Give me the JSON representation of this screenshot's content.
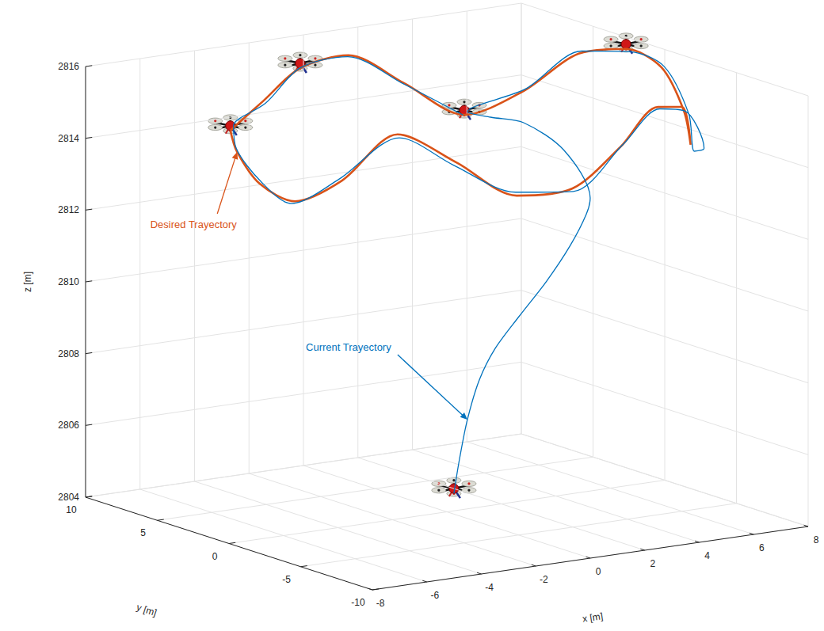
{
  "chart_data": {
    "type": "line3d",
    "xlabel": "x [m]",
    "ylabel": "y [m]",
    "zlabel": "z [m]",
    "xlim": [
      -8,
      8
    ],
    "ylim": [
      -10,
      10
    ],
    "zlim": [
      2804,
      2816
    ],
    "xticks": [
      -8,
      -6,
      -4,
      -2,
      0,
      2,
      4,
      6,
      8
    ],
    "yticks": [
      -10,
      -5,
      0,
      5,
      10
    ],
    "zticks": [
      2804,
      2806,
      2808,
      2810,
      2812,
      2814,
      2816
    ],
    "grid": true,
    "series": [
      {
        "name": "Desired Trayectory",
        "color": "#d95319",
        "values": [
          [
            -5.3,
            5.03,
            2814.56
          ],
          [
            -4.0,
            6.89,
            2814.4
          ],
          [
            -2.46,
            8.15,
            2814.66
          ],
          [
            -0.72,
            8.86,
            2815.3
          ],
          [
            1.11,
            8.97,
            2815.44
          ],
          [
            2.89,
            8.46,
            2814.53
          ],
          [
            4.52,
            7.37,
            2813.61
          ],
          [
            5.86,
            5.79,
            2814.33
          ],
          [
            6.84,
            3.8,
            2815.52
          ],
          [
            7.4,
            1.56,
            2815.88
          ],
          [
            7.47,
            -0.78,
            2815.66
          ],
          [
            7.08,
            -3.08,
            2814.79
          ],
          [
            6.3,
            -5.03,
            2814.18
          ],
          [
            5.0,
            -6.89,
            2815.62
          ],
          [
            3.46,
            -8.15,
            2815.95
          ],
          [
            1.72,
            -8.86,
            2815.13
          ],
          [
            -0.11,
            -8.97,
            2814.18
          ],
          [
            -1.89,
            -8.46,
            2814.11
          ],
          [
            -3.52,
            -7.37,
            2815.07
          ],
          [
            -4.86,
            -5.79,
            2815.8
          ],
          [
            -5.84,
            -3.8,
            2814.37
          ],
          [
            -6.4,
            -1.56,
            2813.56
          ],
          [
            -6.47,
            0.78,
            2813.76
          ],
          [
            -6.08,
            3.08,
            2814.3
          ],
          [
            -5.3,
            5.03,
            2814.56
          ]
        ]
      },
      {
        "name": "Current Trayectory",
        "color": "#0072bd",
        "values": [
          [
            -0.9,
            -2.2,
            2804.9
          ],
          [
            -0.59,
            -2.0,
            2805.79
          ],
          [
            -0.3,
            -2.0,
            2806.86
          ],
          [
            0.14,
            -2.0,
            2807.92
          ],
          [
            0.72,
            -2.0,
            2808.73
          ],
          [
            1.59,
            -2.0,
            2809.52
          ],
          [
            2.61,
            -2.0,
            2810.4
          ],
          [
            3.48,
            -2.0,
            2811.3
          ],
          [
            4.07,
            -2.0,
            2812.11
          ],
          [
            4.21,
            -2.0,
            2812.54
          ],
          [
            4.3,
            0.0,
            2813.6
          ],
          [
            4.4,
            3.0,
            2813.97
          ],
          [
            4.5,
            5.5,
            2813.79
          ],
          [
            4.6,
            7.3,
            2813.7
          ],
          [
            5.9,
            5.7,
            2814.4
          ],
          [
            6.9,
            3.7,
            2815.6
          ],
          [
            7.5,
            1.5,
            2815.8
          ],
          [
            7.5,
            -0.9,
            2815.7
          ],
          [
            7.2,
            -3.2,
            2814.7
          ],
          [
            6.4,
            -5.1,
            2814.0
          ],
          [
            6.6,
            -5.4,
            2814.1
          ],
          [
            5.1,
            -6.9,
            2815.5
          ],
          [
            3.5,
            -8.2,
            2815.9
          ],
          [
            1.8,
            -8.9,
            2815.2
          ],
          [
            -0.1,
            -9.0,
            2814.1
          ],
          [
            -1.9,
            -8.4,
            2814.2
          ],
          [
            -3.6,
            -7.3,
            2815.0
          ],
          [
            -4.8,
            -5.8,
            2815.7
          ],
          [
            -5.9,
            -3.7,
            2814.4
          ],
          [
            -6.5,
            -1.5,
            2813.5
          ],
          [
            -6.4,
            0.8,
            2813.8
          ],
          [
            -6.1,
            3.1,
            2814.4
          ],
          [
            -5.2,
            5.0,
            2814.7
          ],
          [
            -4.0,
            6.9,
            2814.5
          ],
          [
            -2.4,
            8.1,
            2814.6
          ],
          [
            -0.7,
            8.9,
            2815.3
          ],
          [
            1.1,
            9.0,
            2815.4
          ],
          [
            2.9,
            8.5,
            2814.5
          ],
          [
            4.5,
            7.4,
            2813.6
          ]
        ]
      }
    ]
  }
}
